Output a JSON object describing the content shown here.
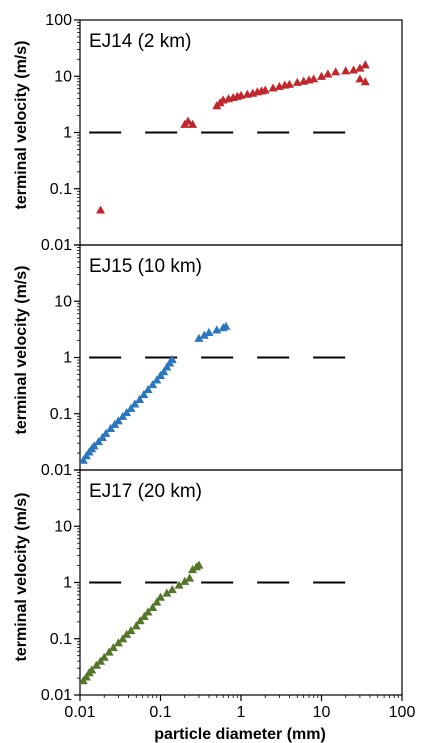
{
  "figure": {
    "xlabel": "particle diameter (mm)",
    "ylabel": "terminal velocity (m/s)",
    "x_ticks": [
      "0.01",
      "0.1",
      "1",
      "10",
      "100"
    ],
    "y_ticks": [
      "100",
      "10",
      "1",
      "0.1",
      "0.01"
    ]
  },
  "chart_data": [
    {
      "type": "scatter",
      "title": "EJ14 (2 km)",
      "x_scale": "log",
      "y_scale": "log",
      "xlim": [
        0.01,
        100
      ],
      "ylim": [
        0.01,
        100
      ],
      "xlabel": "particle diameter (mm)",
      "ylabel": "terminal velocity (m/s)",
      "grid": false,
      "color": "#c0272d",
      "marker": "triangle",
      "reference_line": {
        "y": 1,
        "style": "dashed",
        "color": "#000000"
      },
      "points": [
        [
          0.018,
          0.042
        ],
        [
          0.2,
          1.4
        ],
        [
          0.22,
          1.6
        ],
        [
          0.25,
          1.4
        ],
        [
          0.5,
          3.0
        ],
        [
          0.55,
          3.4
        ],
        [
          0.6,
          3.8
        ],
        [
          0.7,
          4.0
        ],
        [
          0.8,
          4.2
        ],
        [
          0.9,
          4.4
        ],
        [
          1.0,
          4.6
        ],
        [
          1.2,
          4.8
        ],
        [
          1.4,
          5.0
        ],
        [
          1.6,
          5.3
        ],
        [
          1.8,
          5.5
        ],
        [
          2.0,
          5.7
        ],
        [
          2.5,
          6.2
        ],
        [
          3.0,
          6.6
        ],
        [
          3.5,
          7.0
        ],
        [
          4.0,
          7.2
        ],
        [
          5.0,
          7.8
        ],
        [
          6.0,
          8.2
        ],
        [
          7.0,
          8.6
        ],
        [
          8.0,
          9.0
        ],
        [
          10,
          10
        ],
        [
          12,
          11
        ],
        [
          15,
          12
        ],
        [
          20,
          12.5
        ],
        [
          25,
          13
        ],
        [
          30,
          14
        ],
        [
          35,
          16
        ],
        [
          30,
          9
        ],
        [
          35,
          8
        ]
      ]
    },
    {
      "type": "scatter",
      "title": "EJ15 (10 km)",
      "x_scale": "log",
      "y_scale": "log",
      "xlim": [
        0.01,
        100
      ],
      "ylim": [
        0.01,
        100
      ],
      "xlabel": "particle diameter (mm)",
      "ylabel": "terminal velocity (m/s)",
      "grid": false,
      "color": "#2a77bd",
      "marker": "triangle",
      "reference_line": {
        "y": 1,
        "style": "dashed",
        "color": "#000000"
      },
      "points": [
        [
          0.011,
          0.015
        ],
        [
          0.012,
          0.018
        ],
        [
          0.013,
          0.021
        ],
        [
          0.014,
          0.024
        ],
        [
          0.015,
          0.027
        ],
        [
          0.017,
          0.032
        ],
        [
          0.019,
          0.038
        ],
        [
          0.021,
          0.045
        ],
        [
          0.024,
          0.055
        ],
        [
          0.027,
          0.065
        ],
        [
          0.03,
          0.075
        ],
        [
          0.034,
          0.09
        ],
        [
          0.038,
          0.105
        ],
        [
          0.043,
          0.125
        ],
        [
          0.048,
          0.15
        ],
        [
          0.055,
          0.18
        ],
        [
          0.062,
          0.22
        ],
        [
          0.07,
          0.27
        ],
        [
          0.08,
          0.33
        ],
        [
          0.09,
          0.4
        ],
        [
          0.1,
          0.48
        ],
        [
          0.11,
          0.56
        ],
        [
          0.12,
          0.68
        ],
        [
          0.13,
          0.8
        ],
        [
          0.14,
          0.92
        ],
        [
          0.3,
          2.2
        ],
        [
          0.35,
          2.5
        ],
        [
          0.4,
          2.8
        ],
        [
          0.5,
          3.1
        ],
        [
          0.6,
          3.4
        ],
        [
          0.65,
          3.6
        ]
      ]
    },
    {
      "type": "scatter",
      "title": "EJ17 (20 km)",
      "x_scale": "log",
      "y_scale": "log",
      "xlim": [
        0.01,
        100
      ],
      "ylim": [
        0.01,
        100
      ],
      "xlabel": "particle diameter (mm)",
      "ylabel": "terminal velocity (m/s)",
      "grid": false,
      "color": "#55752a",
      "marker": "triangle",
      "reference_line": {
        "y": 1,
        "style": "dashed",
        "color": "#000000"
      },
      "points": [
        [
          0.011,
          0.018
        ],
        [
          0.012,
          0.021
        ],
        [
          0.013,
          0.025
        ],
        [
          0.014,
          0.028
        ],
        [
          0.016,
          0.034
        ],
        [
          0.018,
          0.04
        ],
        [
          0.02,
          0.047
        ],
        [
          0.023,
          0.058
        ],
        [
          0.026,
          0.07
        ],
        [
          0.03,
          0.085
        ],
        [
          0.034,
          0.1
        ],
        [
          0.038,
          0.12
        ],
        [
          0.043,
          0.14
        ],
        [
          0.05,
          0.17
        ],
        [
          0.056,
          0.21
        ],
        [
          0.063,
          0.25
        ],
        [
          0.07,
          0.3
        ],
        [
          0.08,
          0.36
        ],
        [
          0.09,
          0.45
        ],
        [
          0.1,
          0.55
        ],
        [
          0.12,
          0.65
        ],
        [
          0.14,
          0.75
        ],
        [
          0.17,
          0.9
        ],
        [
          0.2,
          1.05
        ],
        [
          0.23,
          1.2
        ],
        [
          0.25,
          1.7
        ],
        [
          0.28,
          1.9
        ],
        [
          0.3,
          2.05
        ]
      ]
    }
  ]
}
